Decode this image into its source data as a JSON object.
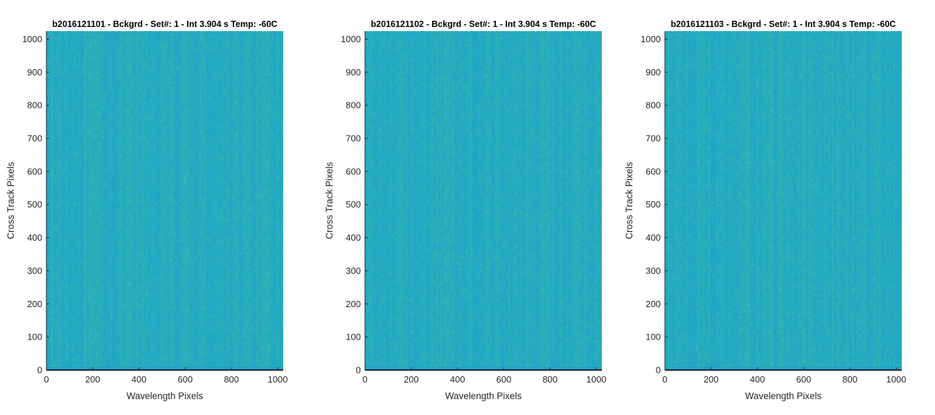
{
  "chart_data": [
    {
      "type": "heatmap",
      "title": "b2016121101 - Bckgrd - Set#: 1 - Int 3.904 s Temp: -60C",
      "xlabel": "Wavelength Pixels",
      "ylabel": "Cross Track Pixels",
      "xlim": [
        0,
        1024
      ],
      "ylim": [
        0,
        1024
      ],
      "xticks": [
        0,
        200,
        400,
        600,
        800,
        1000
      ],
      "yticks": [
        0,
        100,
        200,
        300,
        400,
        500,
        600,
        700,
        800,
        900,
        1000
      ],
      "colormap": [
        "#1e9ed1",
        "#20a8c6",
        "#2fb3b4",
        "#57bb9b",
        "#86c07b"
      ],
      "grid": false
    },
    {
      "type": "heatmap",
      "title": "b2016121102 - Bckgrd - Set#: 1 - Int 3.904 s Temp: -60C",
      "xlabel": "Wavelength Pixels",
      "ylabel": "Cross Track Pixels",
      "xlim": [
        0,
        1024
      ],
      "ylim": [
        0,
        1024
      ],
      "xticks": [
        0,
        200,
        400,
        600,
        800,
        1000
      ],
      "yticks": [
        0,
        100,
        200,
        300,
        400,
        500,
        600,
        700,
        800,
        900,
        1000
      ],
      "colormap": [
        "#1e9ed1",
        "#20a8c6",
        "#2fb3b4",
        "#57bb9b",
        "#86c07b"
      ],
      "grid": false
    },
    {
      "type": "heatmap",
      "title": "b2016121103 - Bckgrd - Set#: 1 - Int 3.904 s Temp: -60C",
      "xlabel": "Wavelength Pixels",
      "ylabel": "Cross Track Pixels",
      "xlim": [
        0,
        1024
      ],
      "ylim": [
        0,
        1024
      ],
      "xticks": [
        0,
        200,
        400,
        600,
        800,
        1000
      ],
      "yticks": [
        0,
        100,
        200,
        300,
        400,
        500,
        600,
        700,
        800,
        900,
        1000
      ],
      "colormap": [
        "#1e9ed1",
        "#20a8c6",
        "#2fb3b4",
        "#57bb9b",
        "#86c07b"
      ],
      "grid": false
    }
  ]
}
